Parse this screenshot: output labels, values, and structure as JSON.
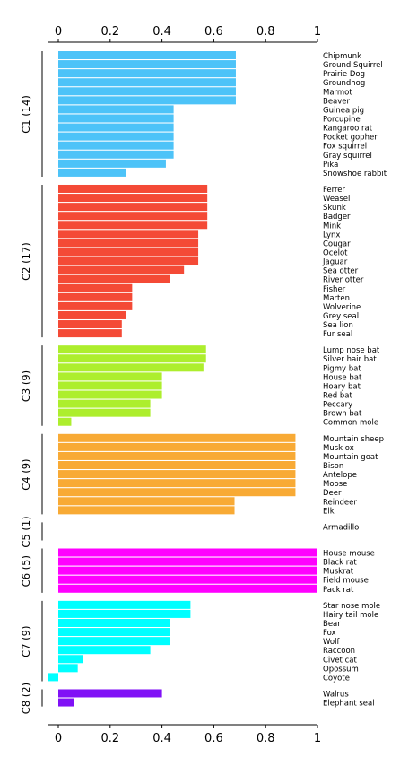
{
  "chart_data": {
    "type": "bar",
    "orientation": "horizontal",
    "xlim": [
      0,
      1
    ],
    "xticks": [
      "0",
      "0.2",
      "0.4",
      "0.6",
      "0.8",
      "1"
    ],
    "x_axis_positions": [
      "top",
      "bottom"
    ],
    "grid": false,
    "clusters": [
      {
        "label": "C1 (14)",
        "color": "#4DC3F8",
        "items": [
          {
            "name": "Chipmunk",
            "value": 0.685
          },
          {
            "name": "Ground Squirrel",
            "value": 0.685
          },
          {
            "name": "Prairie Dog",
            "value": 0.685
          },
          {
            "name": "Groundhog",
            "value": 0.685
          },
          {
            "name": "Marmot",
            "value": 0.685
          },
          {
            "name": "Beaver",
            "value": 0.685
          },
          {
            "name": "Guinea pig",
            "value": 0.445
          },
          {
            "name": "Porcupine",
            "value": 0.445
          },
          {
            "name": "Kangaroo rat",
            "value": 0.445
          },
          {
            "name": "Pocket gopher",
            "value": 0.445
          },
          {
            "name": "Fox squirrel",
            "value": 0.445
          },
          {
            "name": "Gray squirrel",
            "value": 0.445
          },
          {
            "name": "Pika",
            "value": 0.415
          },
          {
            "name": "Snowshoe rabbit",
            "value": 0.26
          }
        ]
      },
      {
        "label": "C2 (17)",
        "color": "#F44A36",
        "items": [
          {
            "name": "Ferrer",
            "value": 0.575
          },
          {
            "name": "Weasel",
            "value": 0.575
          },
          {
            "name": "Skunk",
            "value": 0.575
          },
          {
            "name": "Badger",
            "value": 0.575
          },
          {
            "name": "Mink",
            "value": 0.575
          },
          {
            "name": "Lynx",
            "value": 0.54
          },
          {
            "name": "Cougar",
            "value": 0.54
          },
          {
            "name": "Ocelot",
            "value": 0.54
          },
          {
            "name": "Jaguar",
            "value": 0.54
          },
          {
            "name": "Sea otter",
            "value": 0.485
          },
          {
            "name": "River otter",
            "value": 0.43
          },
          {
            "name": "Fisher",
            "value": 0.285
          },
          {
            "name": "Marten",
            "value": 0.285
          },
          {
            "name": "Wolverine",
            "value": 0.285
          },
          {
            "name": "Grey seal",
            "value": 0.26
          },
          {
            "name": "Sea lion",
            "value": 0.245
          },
          {
            "name": "Fur seal",
            "value": 0.245
          }
        ]
      },
      {
        "label": "C3 (9)",
        "color": "#ADEE2D",
        "items": [
          {
            "name": "Lump nose bat",
            "value": 0.57
          },
          {
            "name": "Silver hair bat",
            "value": 0.57
          },
          {
            "name": "Pigmy bat",
            "value": 0.56
          },
          {
            "name": "House bat",
            "value": 0.4
          },
          {
            "name": "Hoary bat",
            "value": 0.4
          },
          {
            "name": "Red bat",
            "value": 0.4
          },
          {
            "name": "Peccary",
            "value": 0.355
          },
          {
            "name": "Brown bat",
            "value": 0.355
          },
          {
            "name": "Common mole",
            "value": 0.05
          }
        ]
      },
      {
        "label": "C4 (9)",
        "color": "#F8AA35",
        "items": [
          {
            "name": "Mountain sheep",
            "value": 0.915
          },
          {
            "name": "Musk ox",
            "value": 0.915
          },
          {
            "name": "Mountain goat",
            "value": 0.915
          },
          {
            "name": "Bison",
            "value": 0.915
          },
          {
            "name": "Antelope",
            "value": 0.915
          },
          {
            "name": "Moose",
            "value": 0.915
          },
          {
            "name": "Deer",
            "value": 0.915
          },
          {
            "name": "Reindeer",
            "value": 0.68
          },
          {
            "name": "Elk",
            "value": 0.68
          }
        ]
      },
      {
        "label": "C5 (1)",
        "color": "#888888",
        "items": [
          {
            "name": "Armadillo",
            "value": 0
          }
        ]
      },
      {
        "label": "C6 (5)",
        "color": "#FF00FF",
        "items": [
          {
            "name": "House mouse",
            "value": 1.0
          },
          {
            "name": "Black rat",
            "value": 1.0
          },
          {
            "name": "Muskrat",
            "value": 1.0
          },
          {
            "name": "Field mouse",
            "value": 1.0
          },
          {
            "name": "Pack rat",
            "value": 1.0
          }
        ]
      },
      {
        "label": "C7 (9)",
        "color": "#00FFFF",
        "items": [
          {
            "name": "Star nose mole",
            "value": 0.51
          },
          {
            "name": "Hairy tail mole",
            "value": 0.51
          },
          {
            "name": "Bear",
            "value": 0.43
          },
          {
            "name": "Fox",
            "value": 0.43
          },
          {
            "name": "Wolf",
            "value": 0.43
          },
          {
            "name": "Raccoon",
            "value": 0.355
          },
          {
            "name": "Civet cat",
            "value": 0.095
          },
          {
            "name": "Opossum",
            "value": 0.075
          },
          {
            "name": "Coyote",
            "value": -0.04
          }
        ]
      },
      {
        "label": "C8 (2)",
        "color": "#8011F6",
        "items": [
          {
            "name": "Walrus",
            "value": 0.4
          },
          {
            "name": "Elephant seal",
            "value": 0.06
          }
        ]
      }
    ]
  }
}
